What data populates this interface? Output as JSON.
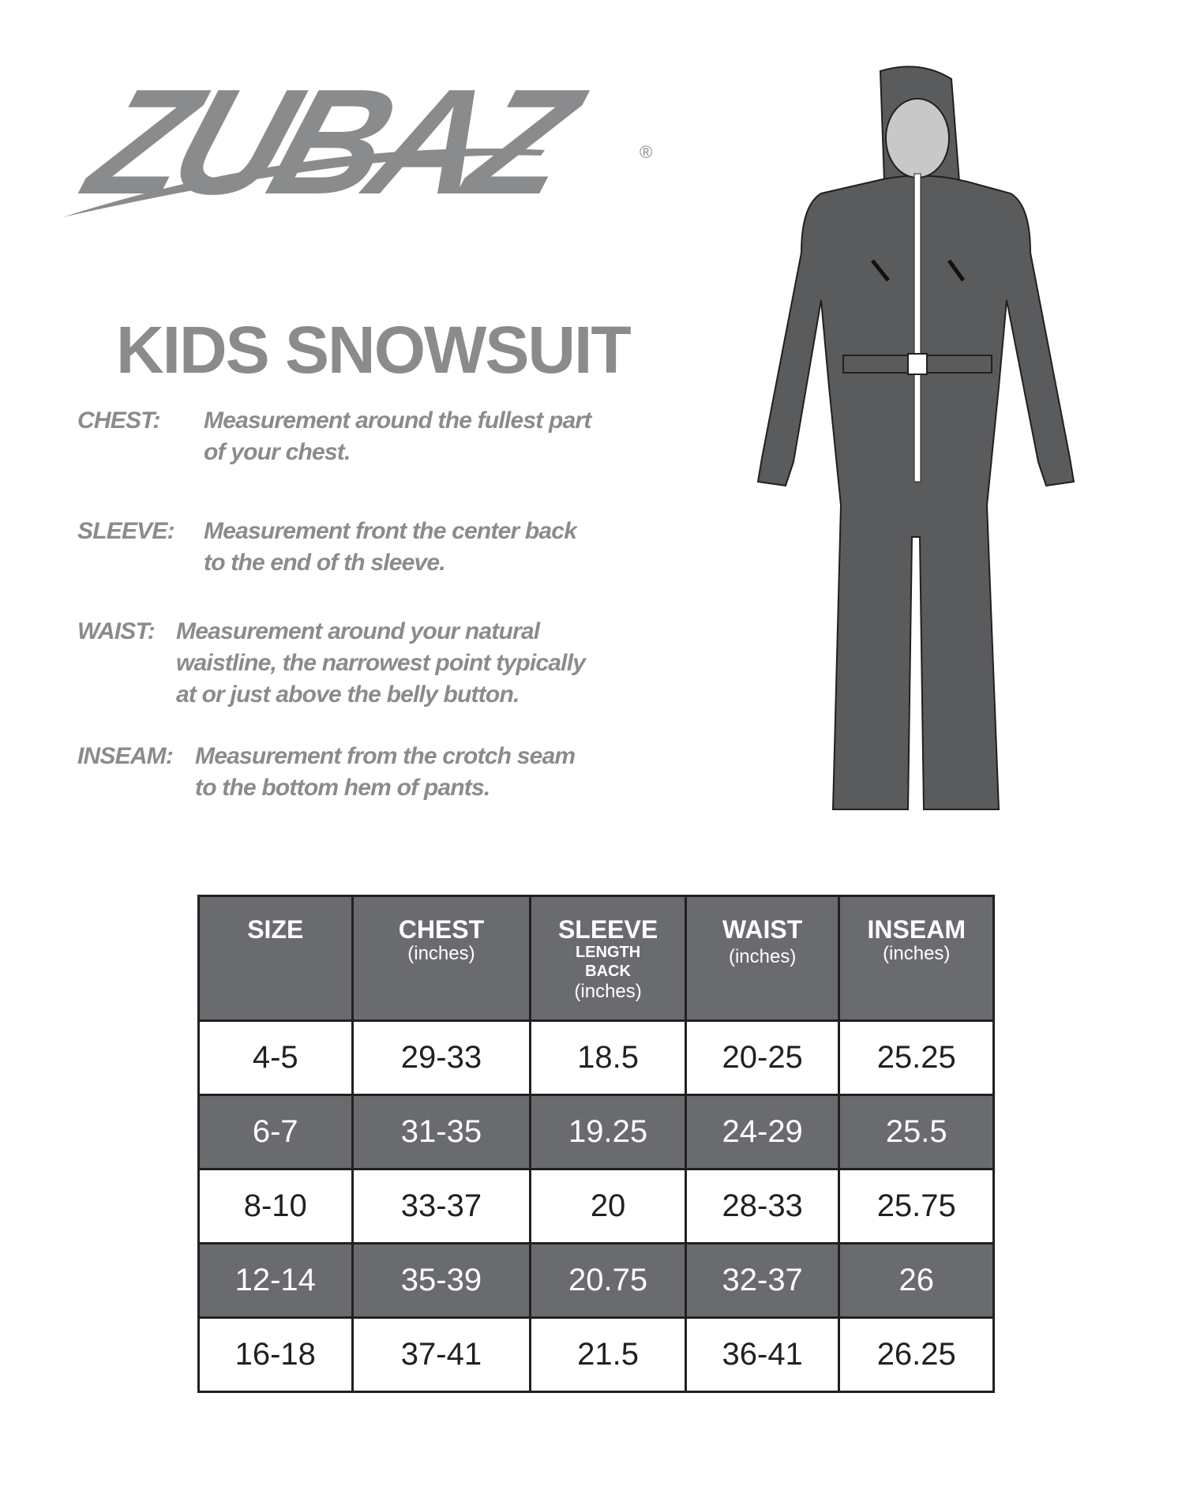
{
  "brand": {
    "logo_text": "ZUBAZ",
    "registered": "®"
  },
  "title": "KIDS SNOWSUIT",
  "definitions": [
    {
      "label": "CHEST:",
      "lines": [
        "Measurement around the fullest part",
        "of your chest."
      ]
    },
    {
      "label": "SLEEVE:",
      "lines": [
        "Measurement front the center back",
        "to the end of th sleeve."
      ]
    },
    {
      "label": "WAIST:",
      "lines": [
        "Measurement around your natural",
        "waistline, the narrowest point typically",
        "at or just above the belly button."
      ]
    },
    {
      "label": "INSEAM:",
      "lines": [
        "Measurement from the crotch seam",
        "to the bottom hem of pants."
      ]
    }
  ],
  "table": {
    "headers": [
      {
        "main": "SIZE",
        "sub": "",
        "unit": ""
      },
      {
        "main": "CHEST",
        "sub": "",
        "unit": "(inches)"
      },
      {
        "main": "SLEEVE",
        "sub": "LENGTH BACK",
        "unit": "(inches)"
      },
      {
        "main": "WAIST",
        "sub": "",
        "unit": "(inches)"
      },
      {
        "main": "INSEAM",
        "sub": "",
        "unit": "(inches)"
      }
    ],
    "rows": [
      [
        "4-5",
        "29-33",
        "18.5",
        "20-25",
        "25.25"
      ],
      [
        "6-7",
        "31-35",
        "19.25",
        "24-29",
        "25.5"
      ],
      [
        "8-10",
        "33-37",
        "20",
        "28-33",
        "25.75"
      ],
      [
        "12-14",
        "35-39",
        "20.75",
        "32-37",
        "26"
      ],
      [
        "16-18",
        "37-41",
        "21.5",
        "36-41",
        "26.25"
      ]
    ]
  },
  "colors": {
    "text_gray": "#8a8b8d",
    "header_fill": "#6a6b6e",
    "suit": "#5a5b5d"
  }
}
